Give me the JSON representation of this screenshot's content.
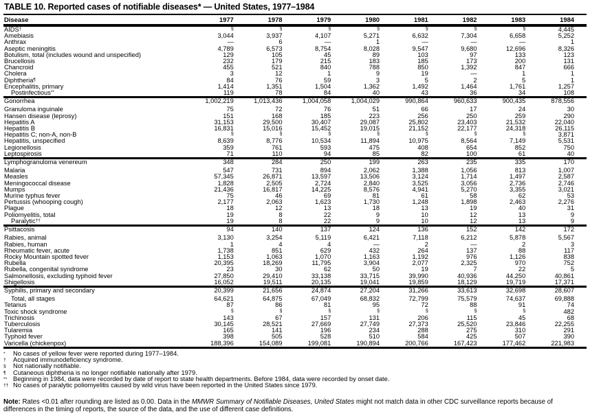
{
  "title": "TABLE 10. Reported cases of notifiable diseases* — United States, 1977–1984",
  "table": {
    "disease_header": "Disease",
    "year_headers": [
      "1977",
      "1978",
      "1979",
      "1980",
      "1981",
      "1982",
      "1983",
      "1984"
    ],
    "not_notifiable_mark": "§",
    "groups": [
      {
        "rows": [
          {
            "label": "AIDS",
            "sup": "†",
            "indent": false,
            "values": [
              "§",
              "§",
              "§",
              "§",
              "§",
              "§",
              "§",
              "4,445"
            ]
          },
          {
            "label": "Amebiasis",
            "sup": "",
            "indent": false,
            "values": [
              "3,044",
              "3,937",
              "4,107",
              "5,271",
              "6,632",
              "7,304",
              "6,658",
              "5,252"
            ]
          },
          {
            "label": "Anthrax",
            "sup": "",
            "indent": false,
            "values": [
              "—",
              "6",
              "—",
              "1",
              "—",
              "—",
              "—",
              "1"
            ]
          },
          {
            "label": "Aseptic meningitis",
            "sup": "",
            "indent": false,
            "values": [
              "4,789",
              "6,573",
              "8,754",
              "8,028",
              "9,547",
              "9,680",
              "12,696",
              "8,326"
            ]
          },
          {
            "label": "Botulism, total (includes wound and unspecified)",
            "sup": "",
            "indent": false,
            "values": [
              "129",
              "105",
              "45",
              "89",
              "103",
              "97",
              "133",
              "123"
            ]
          },
          {
            "label": "Brucellosis",
            "sup": "",
            "indent": false,
            "values": [
              "232",
              "179",
              "215",
              "183",
              "185",
              "173",
              "200",
              "131"
            ]
          },
          {
            "label": "Chancroid",
            "sup": "",
            "indent": false,
            "values": [
              "455",
              "521",
              "840",
              "788",
              "850",
              "1,392",
              "847",
              "666"
            ]
          },
          {
            "label": "Cholera",
            "sup": "",
            "indent": false,
            "values": [
              "3",
              "12",
              "1",
              "9",
              "19",
              "—",
              "1",
              "1"
            ]
          },
          {
            "label": "Diphtheria",
            "sup": "¶",
            "indent": false,
            "values": [
              "84",
              "76",
              "59",
              "3",
              "5",
              "2",
              "5",
              "1"
            ]
          },
          {
            "label": "Encephalitis, primary",
            "sup": "",
            "indent": false,
            "values": [
              "1,414",
              "1,351",
              "1,504",
              "1,362",
              "1,492",
              "1,464",
              "1,761",
              "1,257"
            ]
          },
          {
            "label": "Postinfectious",
            "sup": "**",
            "indent": true,
            "values": [
              "119",
              "78",
              "84",
              "40",
              "43",
              "36",
              "34",
              "108"
            ]
          }
        ]
      },
      {
        "rows": [
          {
            "label": "Gonorrhea",
            "sup": "",
            "indent": false,
            "gap": true,
            "values": [
              "1,002,219",
              "1,013,436",
              "1,004,058",
              "1,004,029",
              "990,864",
              "960,633",
              "900,435",
              "878,556"
            ]
          },
          {
            "label": "Granuloma inguinale",
            "sup": "",
            "indent": false,
            "values": [
              "75",
              "72",
              "76",
              "51",
              "66",
              "17",
              "24",
              "30"
            ]
          },
          {
            "label": "Hansen disease (leprosy)",
            "sup": "",
            "indent": false,
            "values": [
              "151",
              "168",
              "185",
              "223",
              "256",
              "250",
              "259",
              "290"
            ]
          },
          {
            "label": "Hepatitis A",
            "sup": "",
            "indent": false,
            "values": [
              "31,153",
              "29,500",
              "30,407",
              "29,087",
              "25,802",
              "23,403",
              "21,532",
              "22,040"
            ]
          },
          {
            "label": "Hepatitis B",
            "sup": "",
            "indent": false,
            "values": [
              "16,831",
              "15,016",
              "15,452",
              "19,015",
              "21,152",
              "22,177",
              "24,318",
              "26,115"
            ]
          },
          {
            "label": "Hepatitis C; non-A, non-B",
            "sup": "",
            "indent": false,
            "values": [
              "§",
              "§",
              "§",
              "§",
              "§",
              "§",
              "§",
              "3,871"
            ]
          },
          {
            "label": "Hepatitis, unspecified",
            "sup": "",
            "indent": false,
            "values": [
              "8,639",
              "8,776",
              "10,534",
              "11,894",
              "10,975",
              "8,564",
              "7,149",
              "5,531"
            ]
          },
          {
            "label": "Legionellosis",
            "sup": "",
            "indent": false,
            "values": [
              "359",
              "761",
              "593",
              "475",
              "408",
              "654",
              "852",
              "750"
            ]
          },
          {
            "label": "Leptospirosis",
            "sup": "",
            "indent": false,
            "values": [
              "71",
              "110",
              "94",
              "85",
              "82",
              "100",
              "61",
              "40"
            ]
          }
        ]
      },
      {
        "rows": [
          {
            "label": "Lymphogranuloma venereum",
            "sup": "",
            "indent": false,
            "gap": true,
            "values": [
              "348",
              "284",
              "250",
              "199",
              "263",
              "235",
              "335",
              "170"
            ]
          },
          {
            "label": "Malaria",
            "sup": "",
            "indent": false,
            "values": [
              "547",
              "731",
              "894",
              "2,062",
              "1,388",
              "1,056",
              "813",
              "1,007"
            ]
          },
          {
            "label": "Measles",
            "sup": "",
            "indent": false,
            "values": [
              "57,345",
              "26,871",
              "13,597",
              "13,506",
              "3,124",
              "1,714",
              "1,497",
              "2,587"
            ]
          },
          {
            "label": "Meningococcal disease",
            "sup": "",
            "indent": false,
            "values": [
              "1,828",
              "2,505",
              "2,724",
              "2,840",
              "3,525",
              "3,056",
              "2,736",
              "2,746"
            ]
          },
          {
            "label": "Mumps",
            "sup": "",
            "indent": false,
            "values": [
              "21,436",
              "16,817",
              "14,225",
              "8,576",
              "4,941",
              "5,270",
              "3,355",
              "3,021"
            ]
          },
          {
            "label": "Murine typhus fever",
            "sup": "",
            "indent": false,
            "values": [
              "75",
              "46",
              "69",
              "81",
              "61",
              "58",
              "62",
              "53"
            ]
          },
          {
            "label": "Pertussis (whooping cough)",
            "sup": "",
            "indent": false,
            "values": [
              "2,177",
              "2,063",
              "1,623",
              "1,730",
              "1,248",
              "1,898",
              "2,463",
              "2,276"
            ]
          },
          {
            "label": "Plague",
            "sup": "",
            "indent": false,
            "values": [
              "18",
              "12",
              "13",
              "18",
              "13",
              "19",
              "40",
              "31"
            ]
          },
          {
            "label": "Poliomyelitis, total",
            "sup": "",
            "indent": false,
            "values": [
              "19",
              "8",
              "22",
              "9",
              "10",
              "12",
              "13",
              "9"
            ]
          },
          {
            "label": "Paralytic",
            "sup": "††",
            "indent": true,
            "values": [
              "19",
              "8",
              "22",
              "9",
              "10",
              "12",
              "13",
              "9"
            ]
          }
        ]
      },
      {
        "rows": [
          {
            "label": "Psittacosis",
            "sup": "",
            "indent": false,
            "gap": true,
            "values": [
              "94",
              "140",
              "137",
              "124",
              "136",
              "152",
              "142",
              "172"
            ]
          },
          {
            "label": "Rabies, animal",
            "sup": "",
            "indent": false,
            "values": [
              "3,130",
              "3,254",
              "5,119",
              "6,421",
              "7,118",
              "6,212",
              "5,878",
              "5,567"
            ]
          },
          {
            "label": "Rabies, human",
            "sup": "",
            "indent": false,
            "values": [
              "1",
              "4",
              "4",
              "—",
              "2",
              "—",
              "2",
              "3"
            ]
          },
          {
            "label": "Rheumatic fever, acute",
            "sup": "",
            "indent": false,
            "values": [
              "1,738",
              "851",
              "629",
              "432",
              "264",
              "137",
              "88",
              "117"
            ]
          },
          {
            "label": "Rocky Mountain spotted fever",
            "sup": "",
            "indent": false,
            "values": [
              "1,153",
              "1,063",
              "1,070",
              "1,163",
              "1,192",
              "976",
              "1,126",
              "838"
            ]
          },
          {
            "label": "Rubella",
            "sup": "",
            "indent": false,
            "values": [
              "20,395",
              "18,269",
              "11,795",
              "3,904",
              "2,077",
              "2,325",
              "970",
              "752"
            ]
          },
          {
            "label": "Rubella, congenital syndrome",
            "sup": "",
            "indent": false,
            "values": [
              "23",
              "30",
              "62",
              "50",
              "19",
              "7",
              "22",
              "5"
            ]
          },
          {
            "label": "Salmonellosis, excluding typhoid fever",
            "sup": "",
            "indent": false,
            "values": [
              "27,850",
              "29,410",
              "33,138",
              "33,715",
              "39,990",
              "40,936",
              "44,250",
              "40,861"
            ]
          },
          {
            "label": "Shigellosis",
            "sup": "",
            "indent": false,
            "values": [
              "16,052",
              "19,511",
              "20,135",
              "19,041",
              "19,859",
              "18,129",
              "19,719",
              "17,371"
            ]
          }
        ]
      },
      {
        "rows": [
          {
            "label": "Syphilis, primary and secondary",
            "sup": "",
            "indent": false,
            "gap": true,
            "values": [
              "20,399",
              "21,656",
              "24,874",
              "27,204",
              "31,266",
              "33,613",
              "32,698",
              "28,607"
            ]
          },
          {
            "label": "Total, all stages",
            "sup": "",
            "indent": true,
            "values": [
              "64,621",
              "64,875",
              "67,049",
              "68,832",
              "72,799",
              "75,579",
              "74,637",
              "69,888"
            ]
          },
          {
            "label": "Tetanus",
            "sup": "",
            "indent": false,
            "values": [
              "87",
              "86",
              "81",
              "95",
              "72",
              "88",
              "91",
              "74"
            ]
          },
          {
            "label": "Toxic shock syndrome",
            "sup": "",
            "indent": false,
            "values": [
              "§",
              "§",
              "§",
              "§",
              "§",
              "§",
              "§",
              "482"
            ]
          },
          {
            "label": "Trichinosis",
            "sup": "",
            "indent": false,
            "values": [
              "143",
              "67",
              "157",
              "131",
              "206",
              "115",
              "45",
              "68"
            ]
          },
          {
            "label": "Tuberculosis",
            "sup": "",
            "indent": false,
            "values": [
              "30,145",
              "28,521",
              "27,669",
              "27,749",
              "27,373",
              "25,520",
              "23,846",
              "22,255"
            ]
          },
          {
            "label": "Tularemia",
            "sup": "",
            "indent": false,
            "values": [
              "165",
              "141",
              "196",
              "234",
              "288",
              "275",
              "310",
              "291"
            ]
          },
          {
            "label": "Typhoid fever",
            "sup": "",
            "indent": false,
            "values": [
              "398",
              "505",
              "528",
              "510",
              "584",
              "425",
              "507",
              "390"
            ]
          },
          {
            "label": "Varicella (chickenpox)",
            "sup": "",
            "indent": false,
            "values": [
              "188,396",
              "154,089",
              "199,081",
              "190,894",
              "200,766",
              "167,423",
              "177,462",
              "221,983"
            ]
          }
        ]
      }
    ]
  },
  "footnotes": [
    {
      "marker": "*",
      "text": "No cases of yellow fever were reported during 1977–1984."
    },
    {
      "marker": "†",
      "text": "Acquired immunodeficiency syndrome."
    },
    {
      "marker": "§",
      "text": "Not nationally notifiable."
    },
    {
      "marker": "¶",
      "text": "Cutaneous diphtheria is no longer notifiable nationally after 1979."
    },
    {
      "marker": "**",
      "text": "Beginning in 1984, data were recorded by date of report to state health departments. Before 1984, data were recorded by onset date."
    },
    {
      "marker": "††",
      "text": "No cases of paralytic poliomyelitis caused by wild virus have been reported in the United States since 1979."
    }
  ],
  "note": {
    "label": "Note:",
    "text_before": " Rates <0.01 after rounding are listed as 0.00. Data in the ",
    "italic": "MMWR Summary of Notifiable Diseases, United States",
    "text_after": " might not match data in other CDC surveillance reports because of differences in the timing of reports, the source of the data, and the use of different case definitions."
  }
}
